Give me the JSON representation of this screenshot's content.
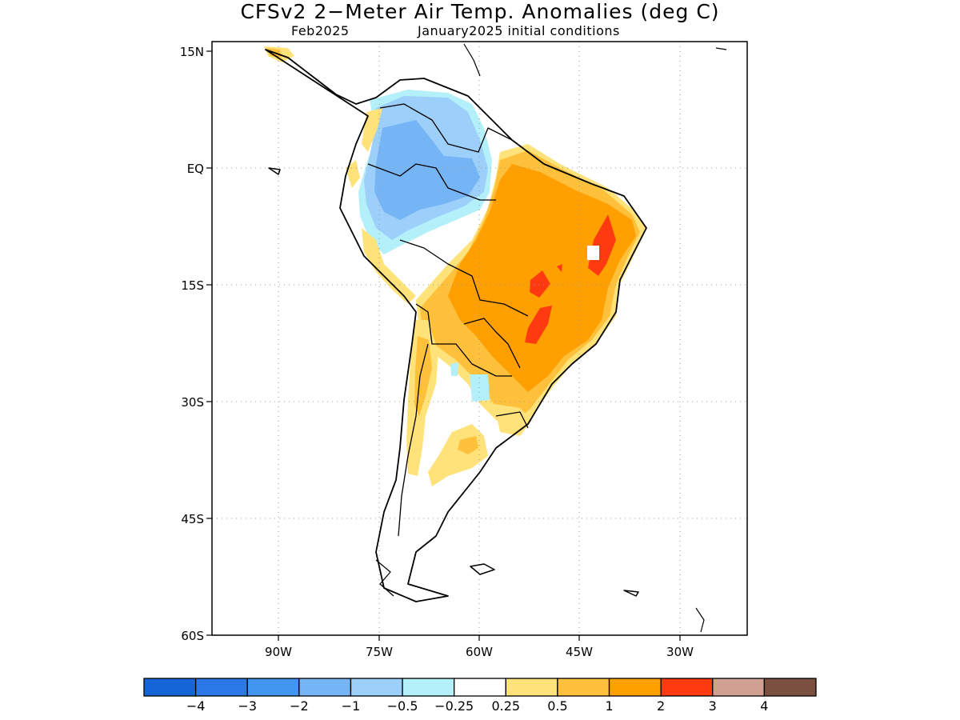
{
  "title": "CFSv2 2−Meter Air Temp. Anomalies (deg C)",
  "subtitle_left": "Feb2025",
  "subtitle_right": "January2025 initial conditions",
  "lat_labels": [
    "15N",
    "EQ",
    "15S",
    "30S",
    "45S",
    "60S"
  ],
  "lon_labels": [
    "90W",
    "75W",
    "60W",
    "45W",
    "30W"
  ],
  "colorbar": {
    "colors": [
      "#1565d6",
      "#2b78e8",
      "#4296f0",
      "#75b5f5",
      "#9ccffa",
      "#b4f0fa",
      "#ffffff",
      "#ffe27a",
      "#ffc03c",
      "#ffa000",
      "#ff3a10",
      "#d0a092",
      "#7c5040"
    ],
    "labels": [
      "−4",
      "−3",
      "−2",
      "−1",
      "−0.5",
      "−0.25",
      "0.25",
      "0.5",
      "1",
      "2",
      "3",
      "4"
    ]
  }
}
